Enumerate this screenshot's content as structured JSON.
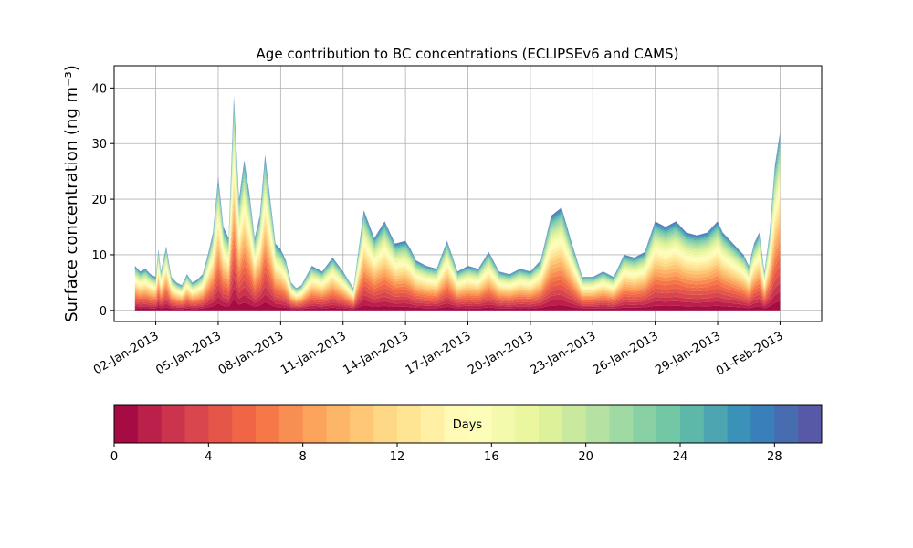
{
  "chart_data": {
    "type": "area",
    "title": "Age contribution to BC concentrations (ECLIPSEv6 and CAMS)",
    "xlabel": "",
    "ylabel": "Surface concentration (ng m⁻³)",
    "stacked": true,
    "grid": true,
    "x_type": "date",
    "x_range": [
      "2012-12-31",
      "2013-02-03"
    ],
    "ylim": [
      -2,
      44
    ],
    "yticks": [
      0,
      10,
      20,
      30,
      40
    ],
    "xticks": [
      "2013-01-02",
      "2013-01-05",
      "2013-01-08",
      "2013-01-11",
      "2013-01-14",
      "2013-01-17",
      "2013-01-20",
      "2013-01-23",
      "2013-01-26",
      "2013-01-29",
      "2013-02-01"
    ],
    "xtick_labels": [
      "02-Jan-2013",
      "05-Jan-2013",
      "08-Jan-2013",
      "11-Jan-2013",
      "14-Jan-2013",
      "17-Jan-2013",
      "20-Jan-2013",
      "23-Jan-2013",
      "26-Jan-2013",
      "29-Jan-2013",
      "01-Feb-2013"
    ],
    "total": {
      "x": [
        "2013-01-01 00:00",
        "2013-01-01 06:00",
        "2013-01-01 12:00",
        "2013-01-01 18:00",
        "2013-01-02 00:00",
        "2013-01-02 03:00",
        "2013-01-02 06:00",
        "2013-01-02 12:00",
        "2013-01-02 18:00",
        "2013-01-03 00:00",
        "2013-01-03 06:00",
        "2013-01-03 12:00",
        "2013-01-03 18:00",
        "2013-01-04 00:00",
        "2013-01-04 06:00",
        "2013-01-04 12:00",
        "2013-01-04 18:00",
        "2013-01-05 00:00",
        "2013-01-05 06:00",
        "2013-01-05 12:00",
        "2013-01-05 18:00",
        "2013-01-06 00:00",
        "2013-01-06 06:00",
        "2013-01-06 12:00",
        "2013-01-06 18:00",
        "2013-01-07 00:00",
        "2013-01-07 06:00",
        "2013-01-07 12:00",
        "2013-01-07 18:00",
        "2013-01-08 00:00",
        "2013-01-08 06:00",
        "2013-01-08 12:00",
        "2013-01-08 18:00",
        "2013-01-09 00:00",
        "2013-01-09 12:00",
        "2013-01-10 00:00",
        "2013-01-10 12:00",
        "2013-01-11 00:00",
        "2013-01-11 12:00",
        "2013-01-12 00:00",
        "2013-01-12 12:00",
        "2013-01-13 00:00",
        "2013-01-13 12:00",
        "2013-01-14 00:00",
        "2013-01-14 06:00",
        "2013-01-14 12:00",
        "2013-01-15 00:00",
        "2013-01-15 12:00",
        "2013-01-16 00:00",
        "2013-01-16 12:00",
        "2013-01-17 00:00",
        "2013-01-17 12:00",
        "2013-01-18 00:00",
        "2013-01-18 12:00",
        "2013-01-19 00:00",
        "2013-01-19 12:00",
        "2013-01-20 00:00",
        "2013-01-20 12:00",
        "2013-01-21 00:00",
        "2013-01-21 12:00",
        "2013-01-22 00:00",
        "2013-01-22 12:00",
        "2013-01-23 00:00",
        "2013-01-23 12:00",
        "2013-01-24 00:00",
        "2013-01-24 12:00",
        "2013-01-25 00:00",
        "2013-01-25 12:00",
        "2013-01-26 00:00",
        "2013-01-26 12:00",
        "2013-01-27 00:00",
        "2013-01-27 12:00",
        "2013-01-28 00:00",
        "2013-01-28 12:00",
        "2013-01-29 00:00",
        "2013-01-29 06:00",
        "2013-01-29 12:00",
        "2013-01-30 00:00",
        "2013-01-30 06:00",
        "2013-01-30 12:00",
        "2013-01-30 18:00",
        "2013-01-31 00:00",
        "2013-01-31 06:00",
        "2013-01-31 12:00",
        "2013-01-31 18:00",
        "2013-02-01 00:00"
      ],
      "y": [
        8,
        7,
        7.5,
        6.5,
        6,
        11,
        7,
        11.5,
        6,
        5,
        4.5,
        6.5,
        5,
        5.5,
        6.5,
        10,
        14,
        24,
        15,
        13,
        38.5,
        20,
        27,
        21,
        13,
        17,
        28,
        20,
        12,
        11,
        9,
        5,
        4,
        4.5,
        8,
        7,
        9.5,
        7,
        4,
        18,
        13,
        16,
        12,
        12.5,
        11,
        9,
        8,
        7.5,
        12.5,
        7,
        8,
        7.5,
        10.5,
        7,
        6.5,
        7.5,
        7,
        9,
        17,
        18.5,
        12,
        6,
        6,
        7,
        6,
        10,
        9.5,
        10.5,
        16,
        15,
        16,
        14,
        13.5,
        14,
        16,
        14,
        13,
        11,
        10,
        8,
        12,
        14,
        7,
        14,
        26,
        32
      ]
    },
    "colorbar": {
      "label": "Days",
      "min": 0,
      "max": 30,
      "ticks": [
        0,
        4,
        8,
        12,
        16,
        20,
        24,
        28
      ],
      "levels": 30,
      "colormap": "Spectral"
    }
  }
}
